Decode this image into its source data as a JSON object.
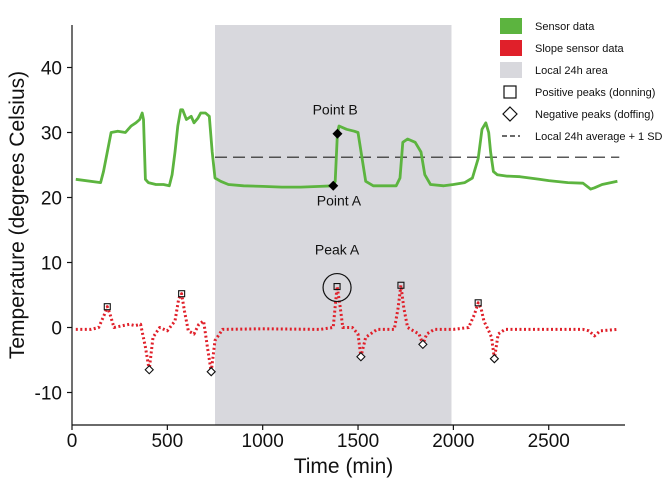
{
  "chart_data": {
    "type": "line",
    "title": "",
    "xlabel": "Time (min)",
    "ylabel": "Temperature (degrees Celsius)",
    "xlim": [
      0,
      2900
    ],
    "ylim": [
      -15,
      45
    ],
    "x_ticks": [
      0,
      500,
      1000,
      1500,
      2000,
      2500
    ],
    "y_ticks": [
      -10,
      0,
      10,
      20,
      30,
      40
    ],
    "x_tick_labels": [
      "0",
      "500",
      "1000",
      "1500",
      "2000",
      "2500"
    ],
    "y_tick_labels": [
      "-10",
      "0",
      "10",
      "20",
      "30",
      "40"
    ],
    "grid": false,
    "legend_position": "top-right",
    "shaded_region": {
      "x_start": 750,
      "x_end": 1990,
      "label": "Local 24h area",
      "color": "#d8d8dd"
    },
    "threshold": {
      "y": 26.2,
      "x_start": 750,
      "x_end": 2870,
      "label": "Local 24h average + 1 SD"
    },
    "series": [
      {
        "name": "Sensor data",
        "color": "#5cb43f",
        "style": "solid",
        "points": [
          [
            20,
            22.8
          ],
          [
            150,
            22.3
          ],
          [
            165,
            24
          ],
          [
            185,
            27
          ],
          [
            205,
            30
          ],
          [
            240,
            30.2
          ],
          [
            280,
            30
          ],
          [
            310,
            31
          ],
          [
            335,
            31.5
          ],
          [
            355,
            32
          ],
          [
            368,
            33
          ],
          [
            375,
            32
          ],
          [
            385,
            22.8
          ],
          [
            400,
            22.3
          ],
          [
            440,
            22
          ],
          [
            480,
            22
          ],
          [
            510,
            21.8
          ],
          [
            525,
            23.5
          ],
          [
            540,
            27
          ],
          [
            555,
            31
          ],
          [
            570,
            33.5
          ],
          [
            580,
            33.5
          ],
          [
            600,
            32
          ],
          [
            625,
            32.5
          ],
          [
            640,
            31.5
          ],
          [
            660,
            32.2
          ],
          [
            675,
            33
          ],
          [
            700,
            33
          ],
          [
            720,
            32.5
          ],
          [
            735,
            27
          ],
          [
            750,
            23
          ],
          [
            780,
            22.5
          ],
          [
            820,
            22
          ],
          [
            900,
            21.8
          ],
          [
            1000,
            21.7
          ],
          [
            1100,
            21.6
          ],
          [
            1200,
            21.6
          ],
          [
            1300,
            21.7
          ],
          [
            1370,
            21.8
          ],
          [
            1380,
            22.5
          ],
          [
            1392,
            29.8
          ],
          [
            1400,
            31
          ],
          [
            1440,
            30.5
          ],
          [
            1480,
            30.2
          ],
          [
            1500,
            30
          ],
          [
            1540,
            22.5
          ],
          [
            1580,
            21.8
          ],
          [
            1640,
            21.8
          ],
          [
            1700,
            21.8
          ],
          [
            1720,
            23
          ],
          [
            1735,
            28.5
          ],
          [
            1760,
            29
          ],
          [
            1800,
            28.5
          ],
          [
            1830,
            27
          ],
          [
            1850,
            23.5
          ],
          [
            1880,
            22
          ],
          [
            1950,
            21.8
          ],
          [
            2000,
            22
          ],
          [
            2060,
            22.3
          ],
          [
            2100,
            23
          ],
          [
            2130,
            26
          ],
          [
            2150,
            30.5
          ],
          [
            2170,
            31.5
          ],
          [
            2185,
            30
          ],
          [
            2195,
            27
          ],
          [
            2210,
            24
          ],
          [
            2230,
            23.5
          ],
          [
            2280,
            23.3
          ],
          [
            2350,
            23.2
          ],
          [
            2400,
            23
          ],
          [
            2450,
            22.8
          ],
          [
            2500,
            22.6
          ],
          [
            2600,
            22.3
          ],
          [
            2680,
            22.2
          ],
          [
            2720,
            21.3
          ],
          [
            2740,
            21.5
          ],
          [
            2780,
            22
          ],
          [
            2860,
            22.5
          ]
        ]
      },
      {
        "name": "Slope sensor data",
        "color": "#e0202a",
        "style": "dotted",
        "points": [
          [
            20,
            -0.3
          ],
          [
            100,
            -0.3
          ],
          [
            140,
            0
          ],
          [
            170,
            2
          ],
          [
            185,
            3.2
          ],
          [
            200,
            2
          ],
          [
            220,
            0
          ],
          [
            300,
            0.5
          ],
          [
            330,
            0.3
          ],
          [
            360,
            0.5
          ],
          [
            385,
            -3
          ],
          [
            405,
            -6.5
          ],
          [
            425,
            -1.5
          ],
          [
            460,
            0
          ],
          [
            500,
            -0.5
          ],
          [
            540,
            1
          ],
          [
            560,
            4.5
          ],
          [
            575,
            5.2
          ],
          [
            590,
            2.5
          ],
          [
            610,
            -0.5
          ],
          [
            640,
            -1
          ],
          [
            665,
            0.5
          ],
          [
            690,
            1
          ],
          [
            710,
            -3
          ],
          [
            730,
            -6.8
          ],
          [
            750,
            -2
          ],
          [
            790,
            -0.3
          ],
          [
            1000,
            -0.2
          ],
          [
            1300,
            -0.3
          ],
          [
            1370,
            0
          ],
          [
            1390,
            6.3
          ],
          [
            1405,
            3.5
          ],
          [
            1420,
            0
          ],
          [
            1470,
            0
          ],
          [
            1500,
            -1
          ],
          [
            1515,
            -4.5
          ],
          [
            1540,
            -1.5
          ],
          [
            1600,
            -0.3
          ],
          [
            1690,
            -0.3
          ],
          [
            1710,
            3
          ],
          [
            1725,
            6.5
          ],
          [
            1740,
            3
          ],
          [
            1760,
            0
          ],
          [
            1790,
            -0.5
          ],
          [
            1820,
            -1
          ],
          [
            1840,
            -2.6
          ],
          [
            1860,
            -1
          ],
          [
            1900,
            -0.3
          ],
          [
            2000,
            -0.3
          ],
          [
            2080,
            0
          ],
          [
            2110,
            2
          ],
          [
            2130,
            3.8
          ],
          [
            2145,
            3
          ],
          [
            2160,
            1
          ],
          [
            2185,
            -0.5
          ],
          [
            2200,
            -1.5
          ],
          [
            2215,
            -4.8
          ],
          [
            2235,
            -1
          ],
          [
            2270,
            -0.3
          ],
          [
            2500,
            -0.3
          ],
          [
            2680,
            -0.3
          ],
          [
            2710,
            -0.5
          ],
          [
            2740,
            -1.3
          ],
          [
            2770,
            -0.5
          ],
          [
            2860,
            -0.3
          ]
        ]
      }
    ],
    "positive_peaks": [
      [
        185,
        3.2
      ],
      [
        575,
        5.2
      ],
      [
        1390,
        6.3
      ],
      [
        1725,
        6.5
      ],
      [
        2130,
        3.8
      ]
    ],
    "negative_peaks": [
      [
        405,
        -6.5
      ],
      [
        730,
        -6.8
      ],
      [
        1515,
        -4.5
      ],
      [
        1840,
        -2.6
      ],
      [
        2215,
        -4.8
      ]
    ],
    "key_points": [
      [
        1392,
        29.8
      ],
      [
        1370,
        21.8
      ]
    ],
    "legend": [
      {
        "label": "Sensor data",
        "marker": "green-square"
      },
      {
        "label": "Slope sensor data",
        "marker": "red-square"
      },
      {
        "label": "Local 24h area",
        "marker": "gray-square"
      },
      {
        "label": "Positive peaks (donning)",
        "marker": "open-square"
      },
      {
        "label": "Negative peaks (doffing)",
        "marker": "open-diamond"
      },
      {
        "label": "Local 24h average + 1 SD",
        "marker": "dashed-line"
      }
    ],
    "annotations": [
      {
        "text": "Point B",
        "x": 1380,
        "y": 32.8
      },
      {
        "text": "Point A",
        "x": 1400,
        "y": 18.8
      },
      {
        "text": "Peak A",
        "x": 1390,
        "y": 11.2
      }
    ]
  }
}
